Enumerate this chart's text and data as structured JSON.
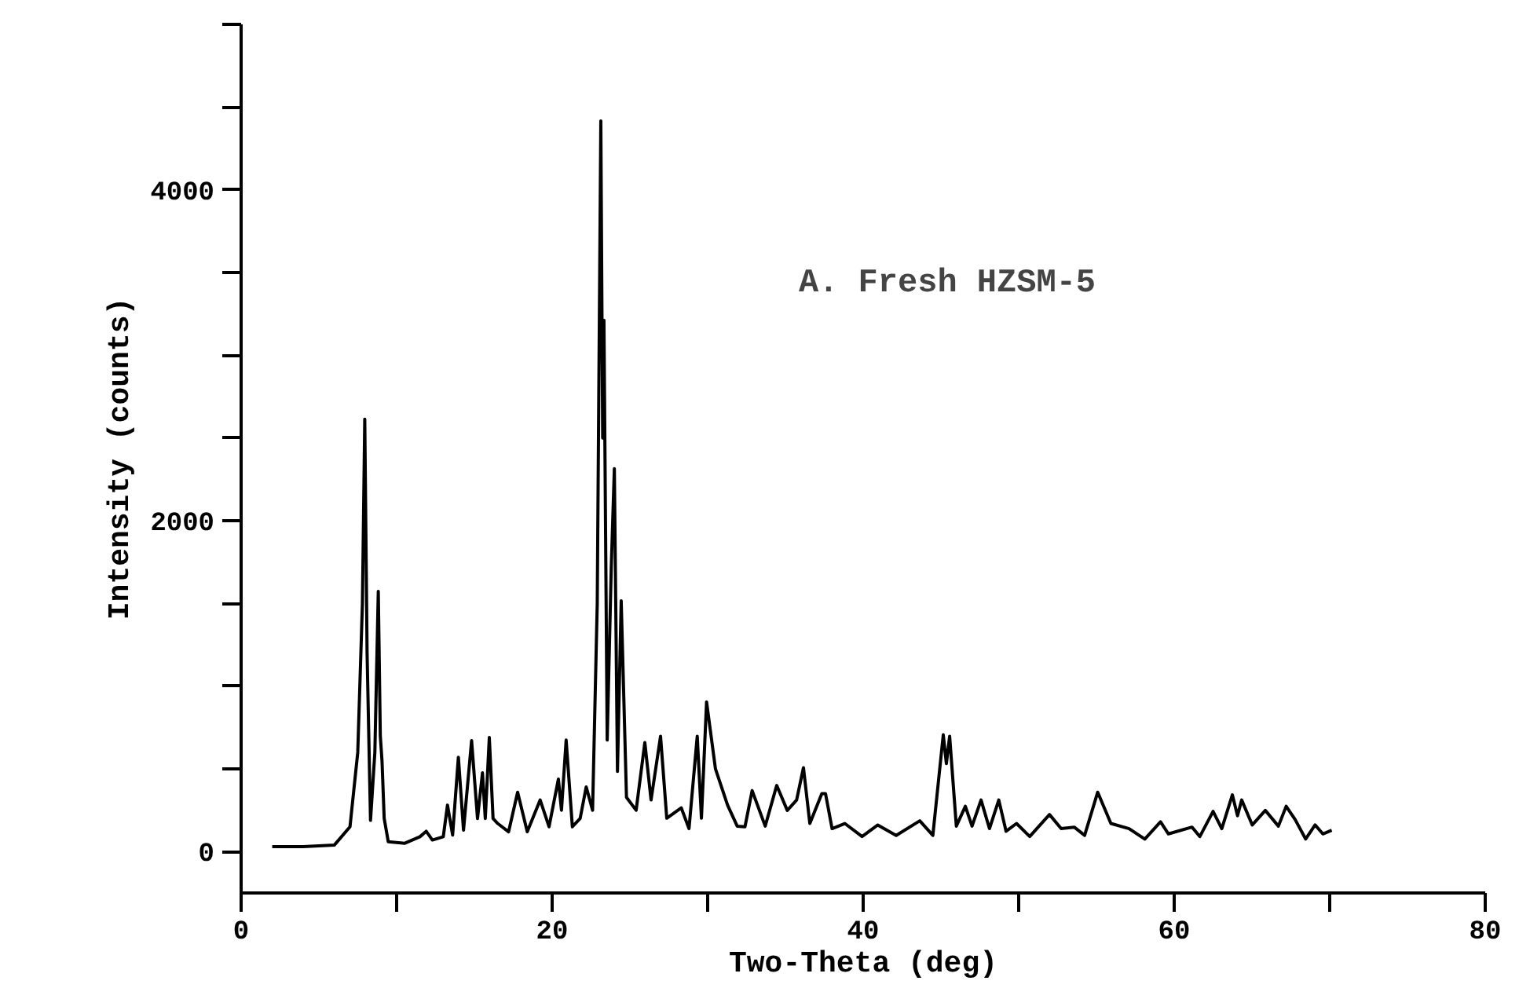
{
  "chart_data": {
    "type": "line",
    "xlabel": "Two-Theta (deg)",
    "ylabel": "Intensity (counts)",
    "annotations": [
      "A. Fresh HZSM-5"
    ],
    "xlim": [
      0,
      80
    ],
    "ylim": [
      -250,
      5000
    ],
    "xticks": [
      0,
      {
        "value": 10,
        "label": null
      },
      20,
      {
        "value": 30,
        "label": null
      },
      40,
      {
        "value": 50,
        "label": null
      },
      60,
      {
        "value": 70,
        "label": null
      },
      80
    ],
    "yticks": [
      0,
      {
        "value": 500,
        "label": null
      },
      {
        "value": 1000,
        "label": null
      },
      {
        "value": 1500,
        "label": null
      },
      2000,
      {
        "value": 2500,
        "label": null
      },
      {
        "value": 3000,
        "label": null
      },
      {
        "value": 3500,
        "label": null
      },
      4000,
      {
        "value": 4500,
        "label": null
      },
      {
        "value": 5000,
        "label": null
      }
    ],
    "grid": false,
    "marker": "none",
    "line_style": "solid",
    "series": [
      {
        "color": "#000000",
        "x": [
          2.0,
          4.0,
          6.0,
          7.0,
          7.5,
          7.8,
          7.95,
          8.1,
          8.32,
          8.6,
          8.82,
          8.95,
          9.06,
          9.2,
          9.46,
          10.5,
          11.5,
          11.9,
          12.3,
          13.0,
          13.27,
          13.6,
          13.97,
          14.3,
          14.82,
          15.2,
          15.52,
          15.7,
          15.96,
          16.2,
          16.5,
          17.2,
          17.78,
          18.4,
          19.23,
          19.8,
          20.4,
          20.6,
          20.9,
          21.3,
          21.8,
          22.19,
          22.6,
          22.9,
          23.13,
          23.25,
          23.33,
          23.54,
          23.8,
          24.0,
          24.2,
          24.44,
          24.78,
          25.4,
          25.96,
          26.36,
          26.97,
          27.37,
          28.3,
          28.8,
          29.33,
          29.6,
          29.93,
          30.5,
          31.28,
          31.9,
          32.4,
          32.86,
          33.7,
          34.44,
          35.12,
          35.72,
          36.16,
          36.57,
          37.34,
          37.58,
          38.0,
          38.82,
          39.93,
          40.94,
          42.12,
          43.64,
          44.48,
          45.15,
          45.35,
          45.56,
          45.99,
          46.57,
          47.0,
          47.58,
          48.12,
          48.72,
          49.19,
          49.86,
          50.71,
          51.98,
          52.73,
          53.57,
          54.24,
          55.08,
          55.93,
          57.1,
          58.11,
          59.12,
          59.63,
          61.14,
          61.65,
          62.5,
          63.06,
          63.74,
          64.07,
          64.34,
          65.02,
          65.86,
          66.7,
          67.2,
          67.78,
          68.45,
          69.06,
          69.56,
          70.13
        ],
        "values": [
          30,
          30,
          40,
          150,
          600,
          1500,
          2613,
          1200,
          189,
          600,
          1573,
          700,
          548,
          200,
          60,
          50,
          90,
          123,
          70,
          90,
          281,
          100,
          570,
          130,
          671,
          200,
          476,
          200,
          690,
          200,
          170,
          120,
          359,
          120,
          312,
          150,
          438,
          250,
          674,
          150,
          200,
          391,
          250,
          1500,
          4416,
          2500,
          3212,
          674,
          1714,
          2314,
          485,
          1516,
          328,
          250,
          659,
          312,
          697,
          202,
          265,
          139,
          697,
          202,
          905,
          501,
          281,
          154,
          150,
          369,
          154,
          400,
          249,
          312,
          507,
          170,
          350,
          350,
          139,
          170,
          91,
          161,
          98,
          186,
          98,
          706,
          532,
          697,
          154,
          274,
          154,
          312,
          139,
          312,
          123,
          170,
          91,
          224,
          139,
          148,
          98,
          359,
          170,
          139,
          76,
          180,
          107,
          148,
          91,
          243,
          139,
          343,
          217,
          312,
          161,
          249,
          154,
          274,
          193,
          76,
          161,
          107,
          129
        ]
      }
    ]
  }
}
